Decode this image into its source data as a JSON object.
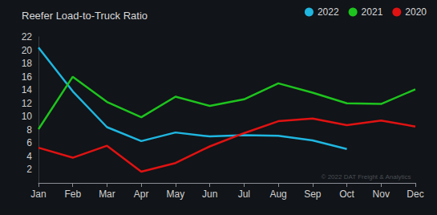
{
  "chart_data": {
    "type": "line",
    "title": "Reefer Load-to-Truck Ratio",
    "categories": [
      "Jan",
      "Feb",
      "Mar",
      "Apr",
      "May",
      "Jun",
      "Jul",
      "Aug",
      "Sep",
      "Oct",
      "Nov",
      "Dec"
    ],
    "series": [
      {
        "name": "2022",
        "color": "#1fb6e0",
        "values": [
          20.4,
          13.8,
          8.4,
          6.3,
          7.6,
          7.0,
          7.2,
          7.1,
          6.4,
          5.1,
          null,
          null
        ]
      },
      {
        "name": "2021",
        "color": "#1ec41e",
        "values": [
          8.1,
          16.0,
          12.2,
          9.9,
          13.0,
          11.6,
          12.6,
          15.0,
          13.6,
          12.0,
          11.9,
          14.1
        ]
      },
      {
        "name": "2020",
        "color": "#e01212",
        "values": [
          5.3,
          3.8,
          5.6,
          1.7,
          3.0,
          5.5,
          7.5,
          9.3,
          9.7,
          8.7,
          9.4,
          8.5
        ]
      }
    ],
    "ylim": [
      0,
      22
    ],
    "yticks": [
      2,
      4,
      6,
      8,
      10,
      12,
      14,
      16,
      18,
      20,
      22
    ],
    "grid": false,
    "legend": "top-right",
    "annotations": [
      "© 2022 DAT Freight & Analytics"
    ]
  }
}
